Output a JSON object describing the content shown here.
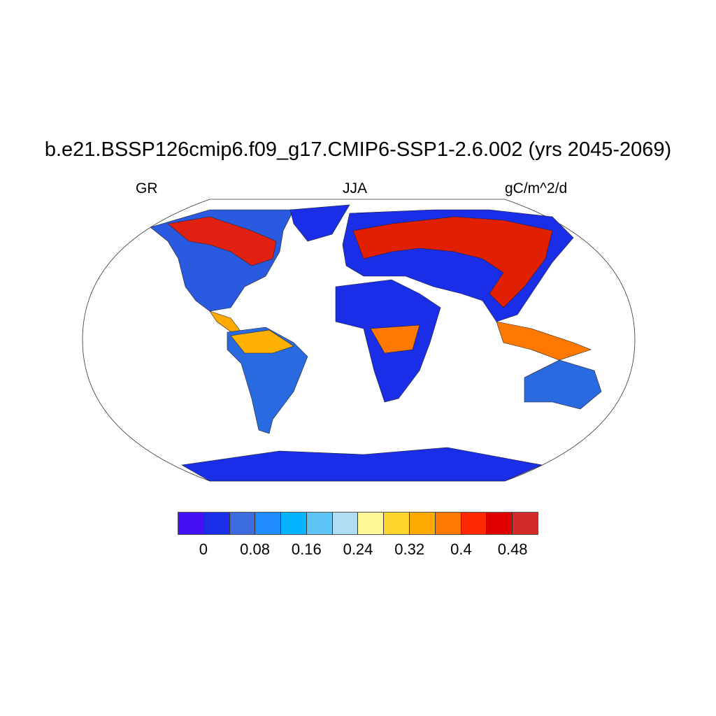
{
  "title": "b.e21.BSSP126cmip6.f09_g17.CMIP6-SSP1-2.6.002 (yrs 2045-2069)",
  "left_label": "GR",
  "center_label": "JJA",
  "right_label": "gC/m^2/d",
  "projection": "Robinson",
  "colorbar": {
    "colors": [
      "#4412f2",
      "#1a2ee8",
      "#3c6be0",
      "#1e8cff",
      "#05b4ff",
      "#5ec4f4",
      "#b0dcf4",
      "#fff798",
      "#ffd62e",
      "#ffaa00",
      "#ff7800",
      "#ff2800",
      "#e00000",
      "#d42a2a"
    ],
    "boundaries": [
      0,
      0.04,
      0.08,
      0.12,
      0.16,
      0.2,
      0.24,
      0.28,
      0.32,
      0.36,
      0.4,
      0.44,
      0.48
    ],
    "tick_labels": [
      "0",
      "0.08",
      "0.16",
      "0.24",
      "0.32",
      "0.4",
      "0.48"
    ]
  }
}
